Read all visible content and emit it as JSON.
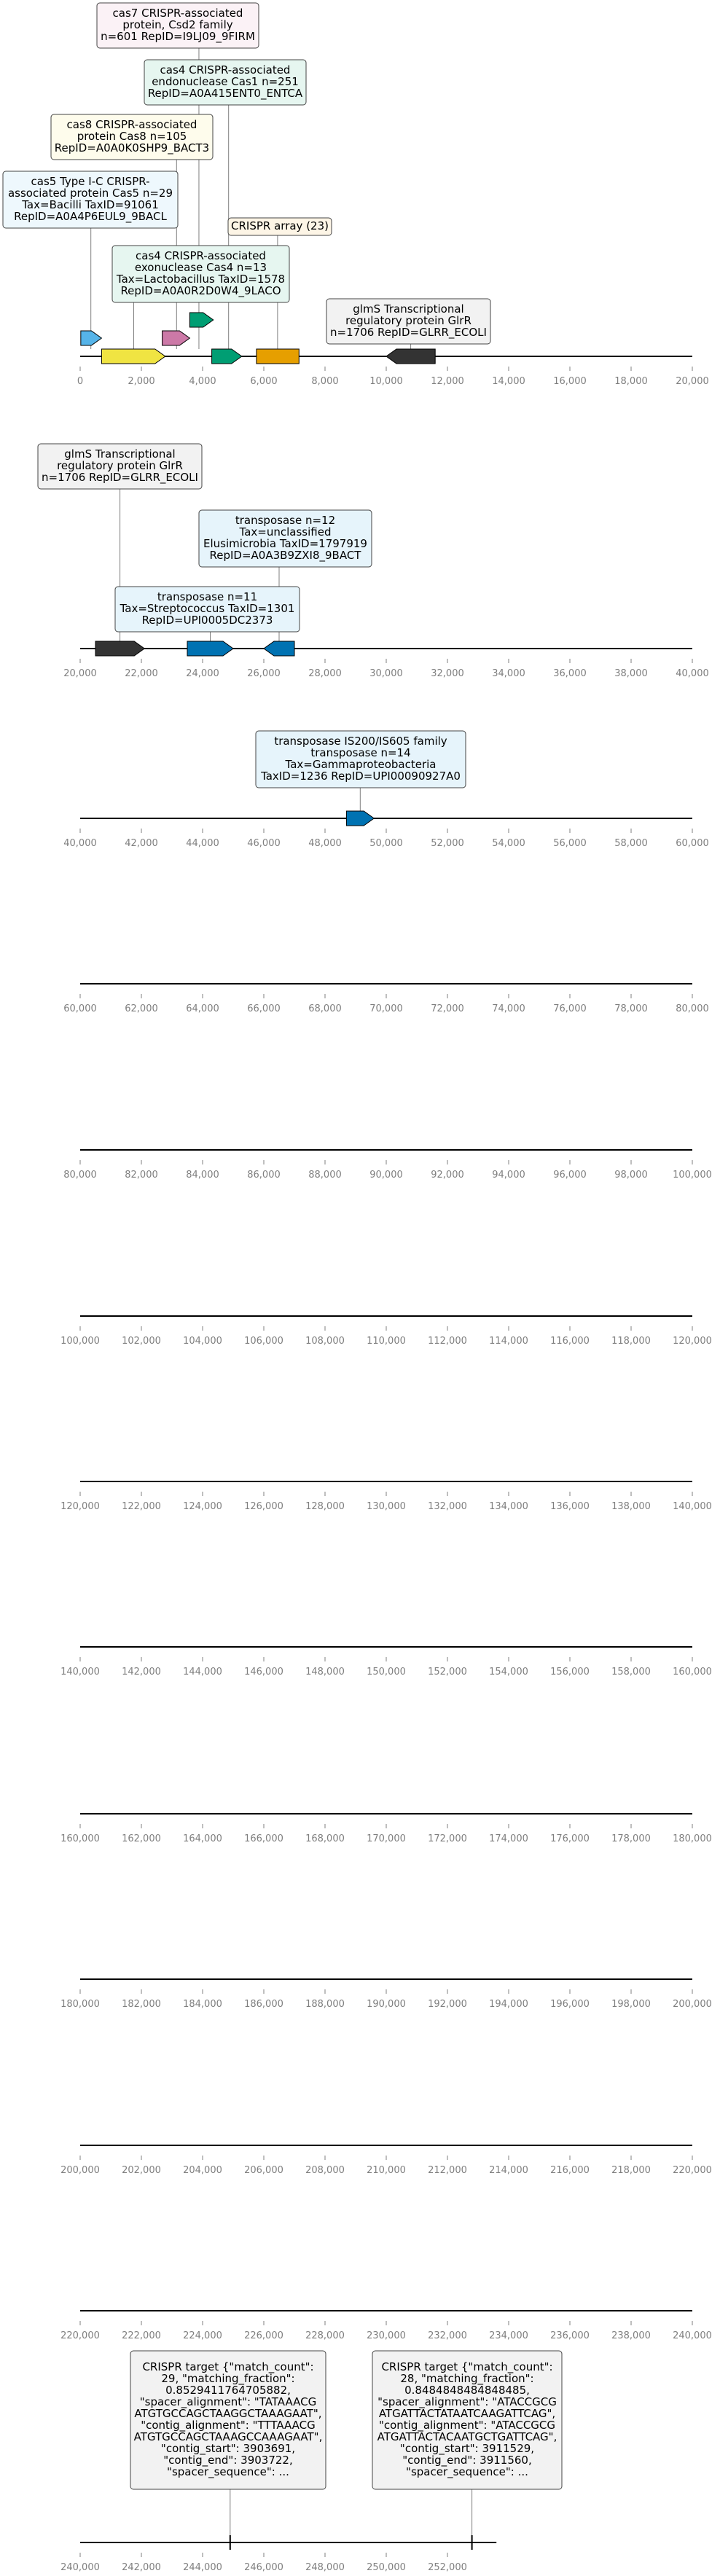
{
  "tracks": [
    {
      "axis": {
        "start": 0,
        "end": 20000,
        "ticks": [
          0,
          2000,
          4000,
          6000,
          8000,
          10000,
          12000,
          14000,
          16000,
          18000,
          20000
        ],
        "tick_labels": [
          "0",
          "2,000",
          "4,000",
          "6,000",
          "8,000",
          "10,000",
          "12,000",
          "14,000",
          "16,000",
          "18,000",
          "20,000"
        ]
      },
      "features": [
        {
          "id": "cas5",
          "start": 20,
          "end": 700,
          "strand": 1,
          "row": 1,
          "color": "#56b4e9"
        },
        {
          "id": "cas3",
          "start": 700,
          "end": 2780,
          "strand": 1,
          "row": 0,
          "color": "#f0e442"
        },
        {
          "id": "cas8",
          "start": 2680,
          "end": 3580,
          "strand": 1,
          "row": 1,
          "color": "#cc79a7"
        },
        {
          "id": "cas7",
          "start": 3580,
          "end": 4350,
          "strand": 1,
          "row": 2,
          "color": "#009e73"
        },
        {
          "id": "cas4",
          "start": 4300,
          "end": 5280,
          "strand": 1,
          "row": 0,
          "color": "#009e73"
        },
        {
          "id": "crispr",
          "start": 5760,
          "end": 7150,
          "strand": 0,
          "row": 0,
          "color": "#e69f00"
        },
        {
          "id": "glmS",
          "start": 10000,
          "end": 11600,
          "strand": -1,
          "row": 0,
          "color": "#333333"
        }
      ],
      "annotations": [
        {
          "lines": [
            "cas7 CRISPR-associated",
            "protein, Csd2 family",
            "n=601 RepID=I9LJ09_9FIRM"
          ],
          "fill": "#fbf2f6",
          "anchor": 3880
        },
        {
          "lines": [
            "cas4 CRISPR-associated",
            "endonuclease Cas1 n=251",
            "RepID=A0A415ENT0_ENTCA"
          ],
          "fill": "#e6f6f0",
          "anchor": 4850
        },
        {
          "lines": [
            "cas8 CRISPR-associated",
            "protein Cas8 n=105",
            "RepID=A0A0K0SHP9_BACT3"
          ],
          "fill": "#fefcec",
          "anchor": 3150
        },
        {
          "lines": [
            "cas5 Type I-C CRISPR-",
            "associated protein Cas5 n=29",
            "Tax=Bacilli TaxID=91061",
            "RepID=A0A4P6EUL9_9BACL"
          ],
          "fill": "#eef8fd",
          "anchor": 350
        },
        {
          "lines": [
            "CRISPR array (23)"
          ],
          "fill": "#fdf5e6",
          "anchor": 6450
        },
        {
          "lines": [
            "cas4 CRISPR-associated",
            "exonuclease Cas4 n=13",
            "Tax=Lactobacillus TaxID=1578",
            "RepID=A0A0R2D0W4_9LACO"
          ],
          "fill": "#e6f6f0",
          "anchor": 1750
        },
        {
          "lines": [
            "glmS Transcriptional",
            "regulatory protein GlrR",
            "n=1706 RepID=GLRR_ECOLI"
          ],
          "fill": "#f2f2f2",
          "anchor": 10800
        }
      ]
    },
    {
      "axis": {
        "start": 20000,
        "end": 40000,
        "ticks": [
          20000,
          22000,
          24000,
          26000,
          28000,
          30000,
          32000,
          34000,
          36000,
          38000,
          40000
        ],
        "tick_labels": [
          "20,000",
          "22,000",
          "24,000",
          "26,000",
          "28,000",
          "30,000",
          "32,000",
          "34,000",
          "36,000",
          "38,000",
          "40,000"
        ]
      },
      "features": [
        {
          "id": "glmS2",
          "start": 20500,
          "end": 22100,
          "strand": 1,
          "row": 0,
          "color": "#333333"
        },
        {
          "id": "tn1",
          "start": 23500,
          "end": 25000,
          "strand": 1,
          "row": 0,
          "color": "#0072b2"
        },
        {
          "id": "tn2",
          "start": 26000,
          "end": 27000,
          "strand": -1,
          "row": 0,
          "color": "#0072b2"
        }
      ],
      "annotations": [
        {
          "lines": [
            "glmS Transcriptional",
            "regulatory protein GlrR",
            "n=1706 RepID=GLRR_ECOLI"
          ],
          "fill": "#f2f2f2",
          "anchor": 21300
        },
        {
          "lines": [
            "transposase n=12",
            "Tax=unclassified",
            "Elusimicrobia TaxID=1797919",
            "RepID=A0A3B9ZXI8_9BACT"
          ],
          "fill": "#e6f4fb",
          "anchor": 26500
        },
        {
          "lines": [
            "transposase n=11",
            "Tax=Streptococcus TaxID=1301",
            "RepID=UPI0005DC2373"
          ],
          "fill": "#e6f4fb",
          "anchor": 24250
        }
      ]
    },
    {
      "axis": {
        "start": 40000,
        "end": 60000,
        "ticks": [
          40000,
          42000,
          44000,
          46000,
          48000,
          50000,
          52000,
          54000,
          56000,
          58000,
          60000
        ],
        "tick_labels": [
          "40,000",
          "42,000",
          "44,000",
          "46,000",
          "48,000",
          "50,000",
          "52,000",
          "54,000",
          "56,000",
          "58,000",
          "60,000"
        ]
      },
      "features": [
        {
          "id": "tn3",
          "start": 48700,
          "end": 49600,
          "strand": 1,
          "row": 0,
          "color": "#0072b2"
        }
      ],
      "annotations": [
        {
          "lines": [
            "transposase IS200/IS605 family",
            "transposase n=14",
            "Tax=Gammaproteobacteria",
            "TaxID=1236 RepID=UPI00090927A0"
          ],
          "fill": "#e6f4fb",
          "anchor": 49150
        }
      ]
    },
    {
      "axis": {
        "start": 60000,
        "end": 80000,
        "ticks": [
          60000,
          62000,
          64000,
          66000,
          68000,
          70000,
          72000,
          74000,
          76000,
          78000,
          80000
        ],
        "tick_labels": [
          "60,000",
          "62,000",
          "64,000",
          "66,000",
          "68,000",
          "70,000",
          "72,000",
          "74,000",
          "76,000",
          "78,000",
          "80,000"
        ]
      },
      "features": [],
      "annotations": []
    },
    {
      "axis": {
        "start": 80000,
        "end": 100000,
        "ticks": [
          80000,
          82000,
          84000,
          86000,
          88000,
          90000,
          92000,
          94000,
          96000,
          98000,
          100000
        ],
        "tick_labels": [
          "80,000",
          "82,000",
          "84,000",
          "86,000",
          "88,000",
          "90,000",
          "92,000",
          "94,000",
          "96,000",
          "98,000",
          "100,000"
        ]
      },
      "features": [],
      "annotations": []
    },
    {
      "axis": {
        "start": 100000,
        "end": 120000,
        "ticks": [
          100000,
          102000,
          104000,
          106000,
          108000,
          110000,
          112000,
          114000,
          116000,
          118000,
          120000
        ],
        "tick_labels": [
          "100,000",
          "102,000",
          "104,000",
          "106,000",
          "108,000",
          "110,000",
          "112,000",
          "114,000",
          "116,000",
          "118,000",
          "120,000"
        ]
      },
      "features": [],
      "annotations": []
    },
    {
      "axis": {
        "start": 120000,
        "end": 140000,
        "ticks": [
          120000,
          122000,
          124000,
          126000,
          128000,
          130000,
          132000,
          134000,
          136000,
          138000,
          140000
        ],
        "tick_labels": [
          "120,000",
          "122,000",
          "124,000",
          "126,000",
          "128,000",
          "130,000",
          "132,000",
          "134,000",
          "136,000",
          "138,000",
          "140,000"
        ]
      },
      "features": [],
      "annotations": []
    },
    {
      "axis": {
        "start": 140000,
        "end": 160000,
        "ticks": [
          140000,
          142000,
          144000,
          146000,
          148000,
          150000,
          152000,
          154000,
          156000,
          158000,
          160000
        ],
        "tick_labels": [
          "140,000",
          "142,000",
          "144,000",
          "146,000",
          "148,000",
          "150,000",
          "152,000",
          "154,000",
          "156,000",
          "158,000",
          "160,000"
        ]
      },
      "features": [],
      "annotations": []
    },
    {
      "axis": {
        "start": 160000,
        "end": 180000,
        "ticks": [
          160000,
          162000,
          164000,
          166000,
          168000,
          170000,
          172000,
          174000,
          176000,
          178000,
          180000
        ],
        "tick_labels": [
          "160,000",
          "162,000",
          "164,000",
          "166,000",
          "168,000",
          "170,000",
          "172,000",
          "174,000",
          "176,000",
          "178,000",
          "180,000"
        ]
      },
      "features": [],
      "annotations": []
    },
    {
      "axis": {
        "start": 180000,
        "end": 200000,
        "ticks": [
          180000,
          182000,
          184000,
          186000,
          188000,
          190000,
          192000,
          194000,
          196000,
          198000,
          200000
        ],
        "tick_labels": [
          "180,000",
          "182,000",
          "184,000",
          "186,000",
          "188,000",
          "190,000",
          "192,000",
          "194,000",
          "196,000",
          "198,000",
          "200,000"
        ]
      },
      "features": [],
      "annotations": []
    },
    {
      "axis": {
        "start": 200000,
        "end": 220000,
        "ticks": [
          200000,
          202000,
          204000,
          206000,
          208000,
          210000,
          212000,
          214000,
          216000,
          218000,
          220000
        ],
        "tick_labels": [
          "200,000",
          "202,000",
          "204,000",
          "206,000",
          "208,000",
          "210,000",
          "212,000",
          "214,000",
          "216,000",
          "218,000",
          "220,000"
        ]
      },
      "features": [],
      "annotations": []
    },
    {
      "axis": {
        "start": 220000,
        "end": 240000,
        "ticks": [
          220000,
          222000,
          224000,
          226000,
          228000,
          230000,
          232000,
          234000,
          236000,
          238000,
          240000
        ],
        "tick_labels": [
          "220,000",
          "222,000",
          "224,000",
          "226,000",
          "228,000",
          "230,000",
          "232,000",
          "234,000",
          "236,000",
          "238,000",
          "240,000"
        ]
      },
      "features": [],
      "annotations": []
    },
    {
      "axis": {
        "start": 240000,
        "end": 260000,
        "ticks": [
          240000,
          242000,
          244000,
          246000,
          248000,
          250000,
          252000
        ],
        "tick_labels": [
          "240,000",
          "242,000",
          "244,000",
          "246,000",
          "248,000",
          "250,000",
          "252,000"
        ]
      },
      "features": [],
      "markers": [
        244900,
        252800
      ],
      "annotations": [
        {
          "lines": [
            "CRISPR target {\"match_count\":",
            "29, \"matching_fraction\":",
            "0.8529411764705882,",
            "\"spacer_alignment\": \"TATAAACG",
            "ATGTGCCAGCTAAGGCTAAAGAAT\",",
            "\"contig_alignment\": \"TTTAAACG",
            "ATGTGCCAGCTAAAGCCAAAGAAT\",",
            "\"contig_start\": 3903691,",
            "\"contig_end\": 3903722,",
            "\"spacer_sequence\": ..."
          ],
          "fill": "#f2f2f2",
          "anchor": 244900
        },
        {
          "lines": [
            "CRISPR target {\"match_count\":",
            "28, \"matching_fraction\":",
            "0.8484848484848485,",
            "\"spacer_alignment\": \"ATACCGCG",
            "ATGATTACTATAATCAAGATTCAG\",",
            "\"contig_alignment\": \"ATACCGCG",
            "ATGATTACTACAATGCTGATTCAG\",",
            "\"contig_start\": 3911529,",
            "\"contig_end\": 3911560,",
            "\"spacer_sequence\": ..."
          ],
          "fill": "#f2f2f2",
          "anchor": 252800
        }
      ]
    }
  ]
}
